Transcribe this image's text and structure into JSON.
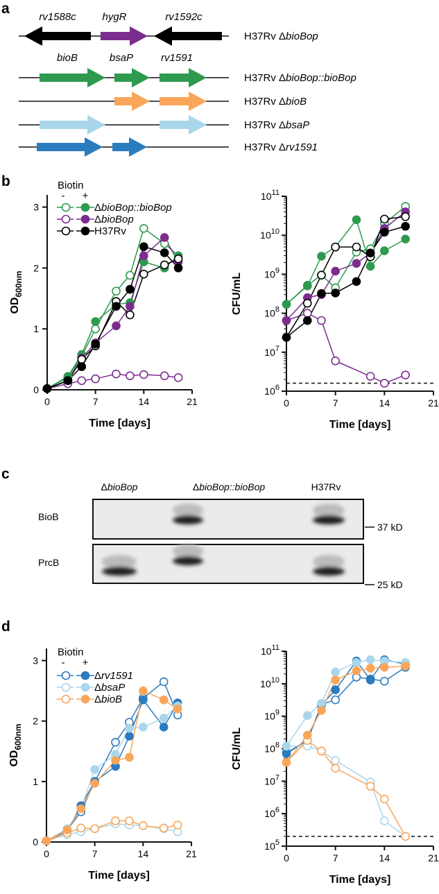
{
  "panels": {
    "a": "a",
    "b": "b",
    "c": "c",
    "d": "d"
  },
  "colors": {
    "green": "#2e9a4f",
    "purple": "#7b2d8e",
    "black": "#000000",
    "dark_blue": "#2b7bbf",
    "light_blue": "#a9d6ea",
    "orange": "#f9a65a"
  },
  "diagram": {
    "top_gene_labels": [
      "rv1588c",
      "hygR",
      "rv1592c"
    ],
    "operon_gene_labels": [
      "bioB",
      "bsaP",
      "rv1591"
    ],
    "rows": [
      {
        "prefix": "H37Rv Δ",
        "italic": "bioBop",
        "suffix": "",
        "genes": [
          {
            "name": "rv1588c",
            "color": "#000000",
            "dir": "left"
          },
          {
            "name": "hygR",
            "color": "#7b2d8e",
            "dir": "right"
          },
          {
            "name": "rv1592c",
            "color": "#000000",
            "dir": "left"
          }
        ]
      },
      {
        "prefix": "H37Rv Δ",
        "italic": "bioBop::bioBop",
        "suffix": "",
        "genes": [
          {
            "name": "bioB",
            "color": "#2e9a4f",
            "dir": "right"
          },
          {
            "name": "bsaP",
            "color": "#2e9a4f",
            "dir": "right"
          },
          {
            "name": "rv1591",
            "color": "#2e9a4f",
            "dir": "right"
          }
        ]
      },
      {
        "prefix": "H37Rv Δ",
        "italic": "bioB",
        "suffix": "",
        "genes": [
          {
            "name": "bsaP",
            "color": "#f9a65a",
            "dir": "right"
          },
          {
            "name": "rv1591",
            "color": "#f9a65a",
            "dir": "right"
          }
        ]
      },
      {
        "prefix": "H37Rv Δ",
        "italic": "bsaP",
        "suffix": "",
        "genes": [
          {
            "name": "bioB",
            "color": "#a9d6ea",
            "dir": "right"
          },
          {
            "name": "rv1591",
            "color": "#a9d6ea",
            "dir": "right"
          }
        ]
      },
      {
        "prefix": "H37Rv Δ",
        "italic": "rv1591",
        "suffix": "",
        "genes": [
          {
            "name": "bioB",
            "color": "#2b7bbf",
            "dir": "right"
          },
          {
            "name": "bsaP",
            "color": "#2b7bbf",
            "dir": "right"
          }
        ]
      }
    ]
  },
  "blot": {
    "lanes": [
      {
        "prefix": "Δ",
        "italic": "bioBop"
      },
      {
        "prefix": "Δ",
        "italic": "bioBop::bioBop"
      },
      {
        "prefix": "",
        "italic": "",
        "plain": "H37Rv"
      }
    ],
    "rows": [
      "BioB",
      "PrcB"
    ],
    "markers": [
      "37 kD",
      "25 kD"
    ],
    "band_presence": {
      "BioB": [
        false,
        true,
        true
      ],
      "PrcB": [
        true,
        true,
        true
      ]
    }
  },
  "chart_data": [
    {
      "id": "b-od",
      "type": "line",
      "title": "",
      "xlabel": "Time [days]",
      "ylabel": "OD",
      "ylabel_sub": "600nm",
      "xlim": [
        0,
        21
      ],
      "ylim": [
        0,
        3.2
      ],
      "xticks": [
        0,
        7,
        14,
        21
      ],
      "yticks": [
        0,
        1,
        2,
        3
      ],
      "yscale": "linear",
      "grid": false,
      "x": [
        0,
        3,
        5,
        7,
        10,
        12,
        14,
        17,
        19
      ],
      "legend": {
        "title": "Biotin",
        "minus": "-",
        "plus": "+",
        "placement": "top-left",
        "entries": [
          {
            "prefix": "Δ",
            "italic": "bioBop::bioBop",
            "color": "#2e9a4f"
          },
          {
            "prefix": "Δ",
            "italic": "bioBop",
            "color": "#7b2d8e"
          },
          {
            "prefix": "H37Rv",
            "italic": "",
            "color": "#000000"
          }
        ]
      },
      "series": [
        {
          "name": "ΔbioBop::bioBop -biotin",
          "biotin": "-",
          "color": "#2e9a4f",
          "values": [
            0.02,
            0.2,
            0.55,
            1.0,
            1.62,
            1.88,
            2.65,
            2.4,
            2.2
          ]
        },
        {
          "name": "ΔbioBop::bioBop +biotin",
          "biotin": "+",
          "color": "#2e9a4f",
          "values": [
            0.02,
            0.22,
            0.58,
            1.12,
            1.4,
            1.43,
            2.1,
            2.0,
            2.2
          ]
        },
        {
          "name": "ΔbioBop -biotin",
          "biotin": "-",
          "color": "#7b2d8e",
          "values": [
            0.02,
            0.1,
            0.15,
            0.18,
            0.26,
            0.23,
            0.25,
            0.23,
            0.2
          ]
        },
        {
          "name": "ΔbioBop +biotin",
          "biotin": "+",
          "color": "#7b2d8e",
          "values": [
            0.02,
            0.15,
            0.52,
            0.77,
            1.05,
            1.37,
            2.2,
            2.5,
            2.1
          ]
        },
        {
          "name": "H37Rv -biotin",
          "biotin": "-",
          "color": "#000000",
          "values": [
            0.02,
            0.15,
            0.5,
            0.72,
            1.45,
            1.23,
            1.9,
            2.05,
            2.15
          ]
        },
        {
          "name": "H37Rv +biotin",
          "biotin": "+",
          "color": "#000000",
          "values": [
            0.02,
            0.15,
            0.38,
            0.75,
            1.37,
            1.65,
            2.35,
            2.25,
            2.0
          ]
        }
      ]
    },
    {
      "id": "b-cfu",
      "type": "line",
      "title": "",
      "xlabel": "Time [days]",
      "ylabel": "CFU/mL",
      "ylabel_sub": "",
      "xlim": [
        0,
        21
      ],
      "ylim": [
        1000000,
        100000000000
      ],
      "xticks": [
        0,
        7,
        14,
        21
      ],
      "ytick_base": "10",
      "yticks": [
        6,
        7,
        8,
        9,
        10,
        11
      ],
      "yscale": "log",
      "grid": false,
      "limit_of_detection": 1600000,
      "x": [
        0,
        3,
        5,
        7,
        10,
        12,
        14,
        17
      ],
      "series": [
        {
          "name": "ΔbioBop::bioBop -biotin",
          "biotin": "-",
          "color": "#2e9a4f",
          "values": [
            170000000,
            520000000,
            950000000,
            450000000,
            3700000000,
            4500000000,
            20000000000,
            55000000000
          ]
        },
        {
          "name": "ΔbioBop::bioBop +biotin",
          "biotin": "+",
          "color": "#2e9a4f",
          "values": [
            170000000,
            500000000,
            2900000000,
            5000000000,
            25000000000,
            1600000000,
            4000000000,
            8000000000
          ]
        },
        {
          "name": "ΔbioBop -biotin",
          "biotin": "-",
          "color": "#7b2d8e",
          "values": [
            65000000,
            100000000,
            65000000,
            6000000,
            null,
            2400000,
            1600000,
            2600000
          ]
        },
        {
          "name": "ΔbioBop +biotin",
          "biotin": "+",
          "color": "#7b2d8e",
          "values": [
            65000000,
            250000000,
            300000000,
            1200000000,
            1900000000,
            3500000000,
            15000000000,
            40000000000
          ]
        },
        {
          "name": "H37Rv -biotin",
          "biotin": "-",
          "color": "#000000",
          "values": [
            24000000,
            180000000,
            950000000,
            5000000000,
            5000000000,
            2800000000,
            26000000000,
            30000000000
          ]
        },
        {
          "name": "H37Rv +biotin",
          "biotin": "+",
          "color": "#000000",
          "values": [
            24000000,
            65000000,
            320000000,
            330000000,
            650000000,
            3500000000,
            12000000000,
            17000000000
          ]
        }
      ]
    },
    {
      "id": "d-od",
      "type": "line",
      "title": "",
      "xlabel": "Time [days]",
      "ylabel": "OD",
      "ylabel_sub": "600nm",
      "xlim": [
        0,
        21
      ],
      "ylim": [
        0,
        3.2
      ],
      "xticks": [
        0,
        7,
        14,
        21
      ],
      "yticks": [
        0,
        1,
        2,
        3
      ],
      "yscale": "linear",
      "grid": false,
      "x": [
        0,
        3,
        5,
        7,
        10,
        12,
        14,
        17,
        19
      ],
      "legend": {
        "title": "Biotin",
        "minus": "-",
        "plus": "+",
        "placement": "top-left",
        "entries": [
          {
            "prefix": "Δ",
            "italic": "rv1591",
            "color": "#2b7bbf"
          },
          {
            "prefix": "Δ",
            "italic": "bsaP",
            "color": "#a9d6ea"
          },
          {
            "prefix": "Δ",
            "italic": "bioB",
            "color": "#f9a65a"
          }
        ]
      },
      "series": [
        {
          "name": "Δrv1591 -biotin",
          "biotin": "-",
          "color": "#2b7bbf",
          "values": [
            0.02,
            0.2,
            0.5,
            1.0,
            1.65,
            1.98,
            2.38,
            2.65,
            2.1
          ]
        },
        {
          "name": "Δrv1591 +biotin",
          "biotin": "+",
          "color": "#2b7bbf",
          "values": [
            0.02,
            0.18,
            0.6,
            1.0,
            1.25,
            1.75,
            2.35,
            1.9,
            2.3
          ]
        },
        {
          "name": "ΔbsaP -biotin",
          "biotin": "-",
          "color": "#a9d6ea",
          "values": [
            0.02,
            0.12,
            0.17,
            0.22,
            0.3,
            0.28,
            0.27,
            0.22,
            0.17
          ]
        },
        {
          "name": "ΔbsaP +biotin",
          "biotin": "+",
          "color": "#a9d6ea",
          "values": [
            0.02,
            0.22,
            0.55,
            1.2,
            1.45,
            1.88,
            1.9,
            2.05,
            2.25
          ]
        },
        {
          "name": "ΔbioB -biotin",
          "biotin": "-",
          "color": "#f9a65a",
          "values": [
            0.02,
            0.15,
            0.23,
            0.22,
            0.35,
            0.35,
            0.27,
            0.23,
            0.28
          ]
        },
        {
          "name": "ΔbioB +biotin",
          "biotin": "+",
          "color": "#f9a65a",
          "values": [
            0.02,
            0.2,
            0.55,
            0.97,
            1.35,
            1.4,
            2.5,
            2.35,
            2.2
          ]
        }
      ]
    },
    {
      "id": "d-cfu",
      "type": "line",
      "title": "",
      "xlabel": "Time [days]",
      "ylabel": "CFU/mL",
      "ylabel_sub": "",
      "xlim": [
        0,
        21
      ],
      "ylim": [
        100000,
        100000000000
      ],
      "xticks": [
        0,
        7,
        14,
        21
      ],
      "ytick_base": "10",
      "yticks": [
        5,
        6,
        7,
        8,
        9,
        10,
        11
      ],
      "yscale": "log",
      "grid": false,
      "limit_of_detection": 200000,
      "x": [
        0,
        3,
        5,
        7,
        10,
        12,
        14,
        17
      ],
      "series": [
        {
          "name": "Δrv1591 -biotin",
          "biotin": "-",
          "color": "#2b7bbf",
          "values": [
            75000000,
            180000000,
            2300000000,
            3200000000,
            16000000000,
            14000000000,
            12000000000,
            32000000000
          ]
        },
        {
          "name": "Δrv1591 +biotin",
          "biotin": "+",
          "color": "#2b7bbf",
          "values": [
            70000000,
            180000000,
            2200000000,
            6500000000,
            50000000000,
            13000000000,
            55000000000,
            40000000000
          ]
        },
        {
          "name": "ΔbsaP -biotin",
          "biotin": "-",
          "color": "#a9d6ea",
          "values": [
            120000000,
            120000000,
            85000000,
            43000000,
            null,
            9500000,
            600000,
            200000
          ]
        },
        {
          "name": "ΔbsaP +biotin",
          "biotin": "+",
          "color": "#a9d6ea",
          "values": [
            120000000,
            1050000000,
            2500000000,
            23000000000,
            45000000000,
            55000000000,
            50000000000,
            45000000000
          ]
        },
        {
          "name": "ΔbioB -biotin",
          "biotin": "-",
          "color": "#f9a65a",
          "values": [
            38000000,
            180000000,
            85000000,
            25000000,
            null,
            7000000,
            2800000,
            200000
          ]
        },
        {
          "name": "ΔbioB +biotin",
          "biotin": "+",
          "color": "#f9a65a",
          "values": [
            38000000,
            260000000,
            1500000000,
            13000000000,
            25000000000,
            30000000000,
            32000000000,
            35000000000
          ]
        }
      ]
    }
  ]
}
